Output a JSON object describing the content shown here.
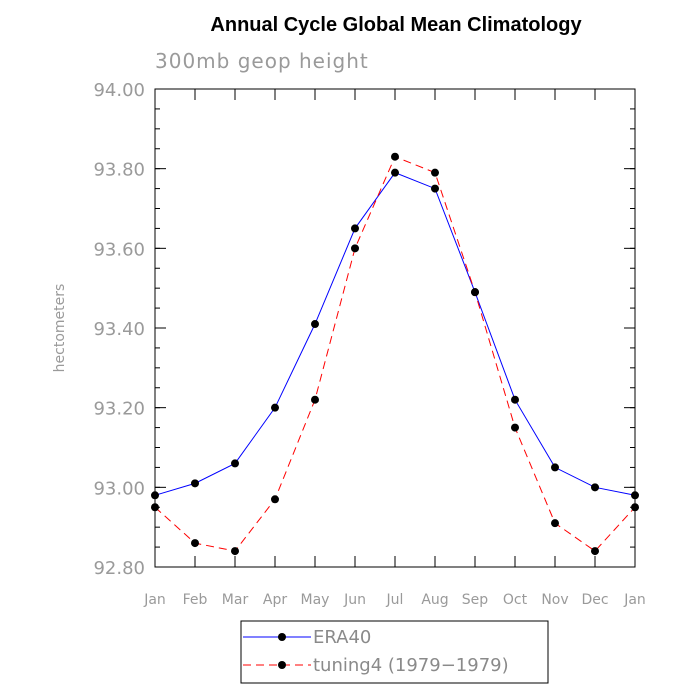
{
  "chart_data": {
    "type": "line",
    "title": "Annual Cycle Global Mean Climatology",
    "subtitle": "300mb geop height",
    "xlabel": "",
    "ylabel": "hectometers",
    "categories": [
      "Jan",
      "Feb",
      "Mar",
      "Apr",
      "May",
      "Jun",
      "Jul",
      "Aug",
      "Sep",
      "Oct",
      "Nov",
      "Dec",
      "Jan"
    ],
    "ylim": [
      92.8,
      94.0
    ],
    "yticks": [
      92.8,
      93.0,
      93.2,
      93.4,
      93.6,
      93.8,
      94.0
    ],
    "ytick_labels": [
      "92.80",
      "93.00",
      "93.20",
      "93.40",
      "93.60",
      "93.80",
      "94.00"
    ],
    "legend_position": "bottom-center",
    "series": [
      {
        "name": "ERA40",
        "color": "#0000ff",
        "line_style": "solid",
        "marker": "filled-circle",
        "values": [
          92.98,
          93.01,
          93.06,
          93.2,
          93.41,
          93.65,
          93.79,
          93.75,
          93.49,
          93.22,
          93.05,
          93.0,
          92.98
        ]
      },
      {
        "name": "tuning4 (1979-1979)",
        "color": "#ff0000",
        "line_style": "dashed",
        "marker": "filled-circle",
        "values": [
          92.95,
          92.86,
          92.84,
          92.97,
          93.22,
          93.6,
          93.83,
          93.79,
          93.49,
          93.15,
          92.91,
          92.84,
          92.95
        ]
      }
    ]
  },
  "legend": {
    "entries": [
      "ERA40",
      "tuning4 (1979−1979)"
    ]
  }
}
